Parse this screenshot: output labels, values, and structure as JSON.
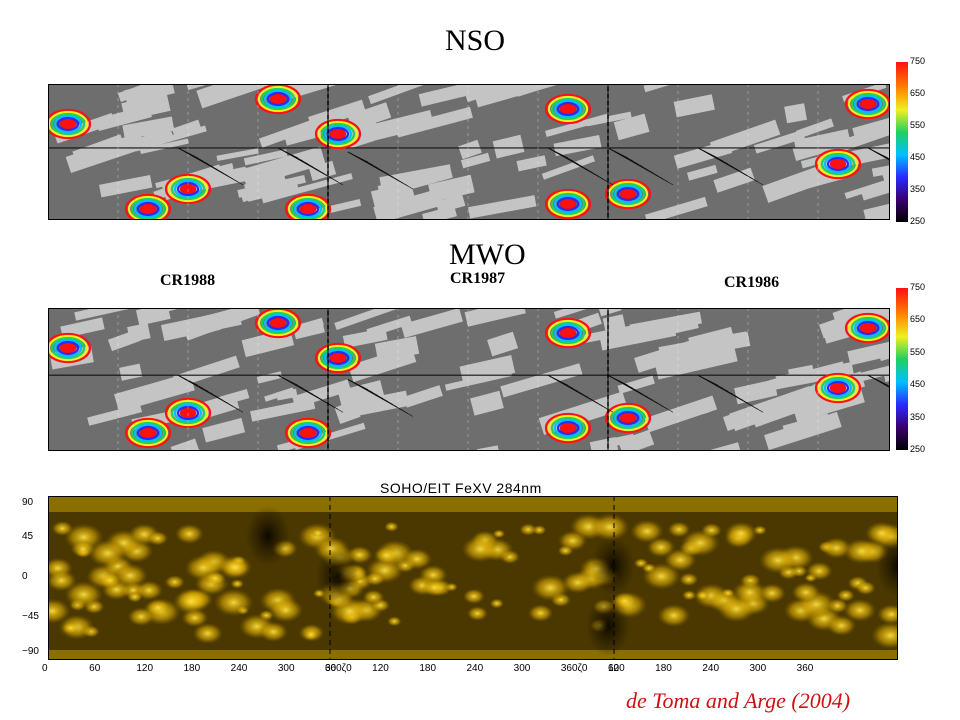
{
  "titles": {
    "nso": "NSO",
    "mwo": "MWO"
  },
  "rotations": [
    "CR1988",
    "CR1987",
    "CR1986"
  ],
  "credit": "de Toma and Arge (2004)",
  "colorbar": {
    "ticks": [
      "750",
      "650",
      "550",
      "450",
      "350",
      "250"
    ],
    "range": [
      250,
      750
    ],
    "colors": [
      "#000000",
      "#3a0070",
      "#2a2aff",
      "#00c0ff",
      "#20d060",
      "#f0f020",
      "#ff8000",
      "#ff1010"
    ]
  },
  "eit": {
    "title": "SOHO/EIT FeXV 284nm",
    "y_ticks": [
      "90",
      "45",
      "0",
      "−45",
      "−90"
    ],
    "x_ticks": [
      "0",
      "60",
      "120",
      "180",
      "240",
      "300",
      "360",
      "0",
      "60",
      "120",
      "180",
      "240",
      "300",
      "360",
      "0",
      "60",
      "120",
      "180",
      "240",
      "300",
      "360"
    ],
    "x_tick_labels": [
      "0",
      "60",
      "120",
      "180",
      "240",
      "300",
      "360ζ0",
      "60",
      "120",
      "180",
      "240",
      "300",
      "360ζ0",
      "60",
      "120",
      "180",
      "240",
      "300",
      "360"
    ]
  },
  "chart_data": [
    {
      "type": "heatmap",
      "title": "NSO",
      "panels": [
        "CR1988",
        "CR1987",
        "CR1986"
      ],
      "colorbar_range": [
        250,
        750
      ],
      "colorbar_ticks": [
        250,
        350,
        450,
        550,
        650,
        750
      ]
    },
    {
      "type": "heatmap",
      "title": "MWO",
      "panels": [
        "CR1988",
        "CR1987",
        "CR1986"
      ],
      "colorbar_range": [
        250,
        750
      ],
      "colorbar_ticks": [
        250,
        350,
        450,
        550,
        650,
        750
      ]
    },
    {
      "type": "heatmap",
      "title": "SOHO/EIT FeXV 284nm",
      "ylim": [
        -90,
        90
      ],
      "yticks": [
        90,
        45,
        0,
        -45,
        -90
      ],
      "x_ticks_per_panel": [
        0,
        60,
        120,
        180,
        240,
        300,
        360
      ],
      "panels": 3
    }
  ],
  "colors": {
    "credit": "#d01010",
    "dark_gray": "#6e6e6e",
    "light_gray": "#c4c4c4",
    "eit_gold": "#c8a000"
  }
}
